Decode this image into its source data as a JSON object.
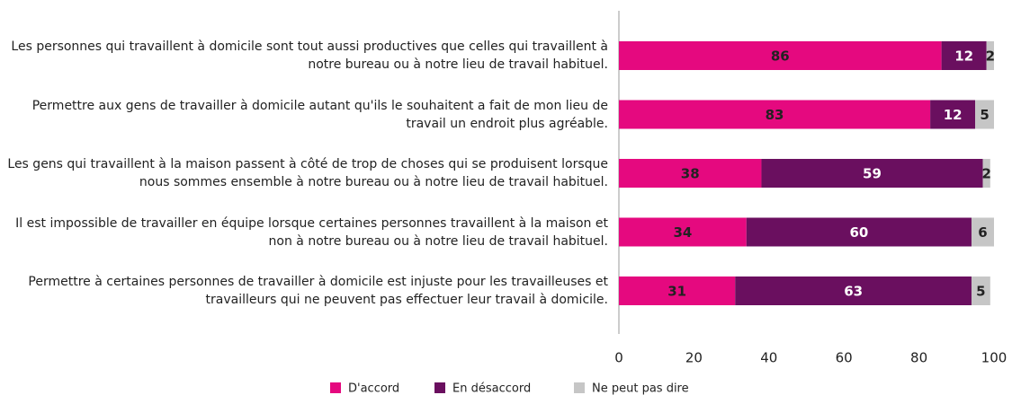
{
  "chart_data": {
    "type": "stacked-bar-horizontal",
    "categories": [
      "Les personnes qui travaillent à domicile sont tout aussi productives que celles qui travaillent à notre bureau ou à notre lieu de travail habituel.",
      "Permettre aux gens de travailler à domicile autant qu'ils le souhaitent a fait de mon lieu de travail un endroit plus agréable.",
      "Les gens qui travaillent à la maison passent à côté de trop de choses qui se produisent lorsque nous sommes ensemble à notre bureau ou à notre lieu de travail habituel.",
      "Il est impossible de travailler en équipe lorsque certaines personnes travaillent à la maison et non à notre bureau ou à notre lieu de travail habituel.",
      "Permettre à certaines personnes de travailler à domicile est injuste pour les travailleuses et travailleurs qui ne peuvent pas effectuer leur travail à domicile."
    ],
    "series": [
      {
        "name": "D'accord",
        "color": "#e5097f",
        "values": [
          86,
          83,
          38,
          34,
          31
        ]
      },
      {
        "name": "En désaccord",
        "color": "#6a0f5f",
        "values": [
          12,
          12,
          59,
          60,
          63
        ]
      },
      {
        "name": "Ne peut pas dire",
        "color": "#c6c6c6",
        "values": [
          2,
          5,
          2,
          6,
          5
        ]
      }
    ],
    "xlim": [
      0,
      100
    ],
    "xticks": [
      0,
      20,
      40,
      60,
      80,
      100
    ],
    "grid": false,
    "legend": "bottom"
  }
}
